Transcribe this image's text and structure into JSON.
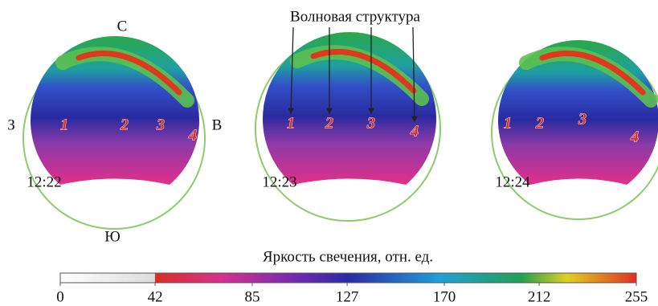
{
  "annotation": "Волновая структура",
  "compass": {
    "north": "С",
    "west": "З",
    "east": "В",
    "south": "Ю"
  },
  "panels": [
    {
      "time": "12:22",
      "labels": [
        "1",
        "2",
        "3",
        "4"
      ]
    },
    {
      "time": "12:23",
      "labels": [
        "1",
        "2",
        "3",
        "4"
      ]
    },
    {
      "time": "12:24",
      "labels": [
        "1",
        "2",
        "3",
        "4"
      ]
    }
  ],
  "colorbar": {
    "label": "Яркость свечения, отн. ед.",
    "lim": [
      0,
      255
    ],
    "ticks": [
      0,
      42,
      85,
      127,
      170,
      212,
      255
    ]
  }
}
